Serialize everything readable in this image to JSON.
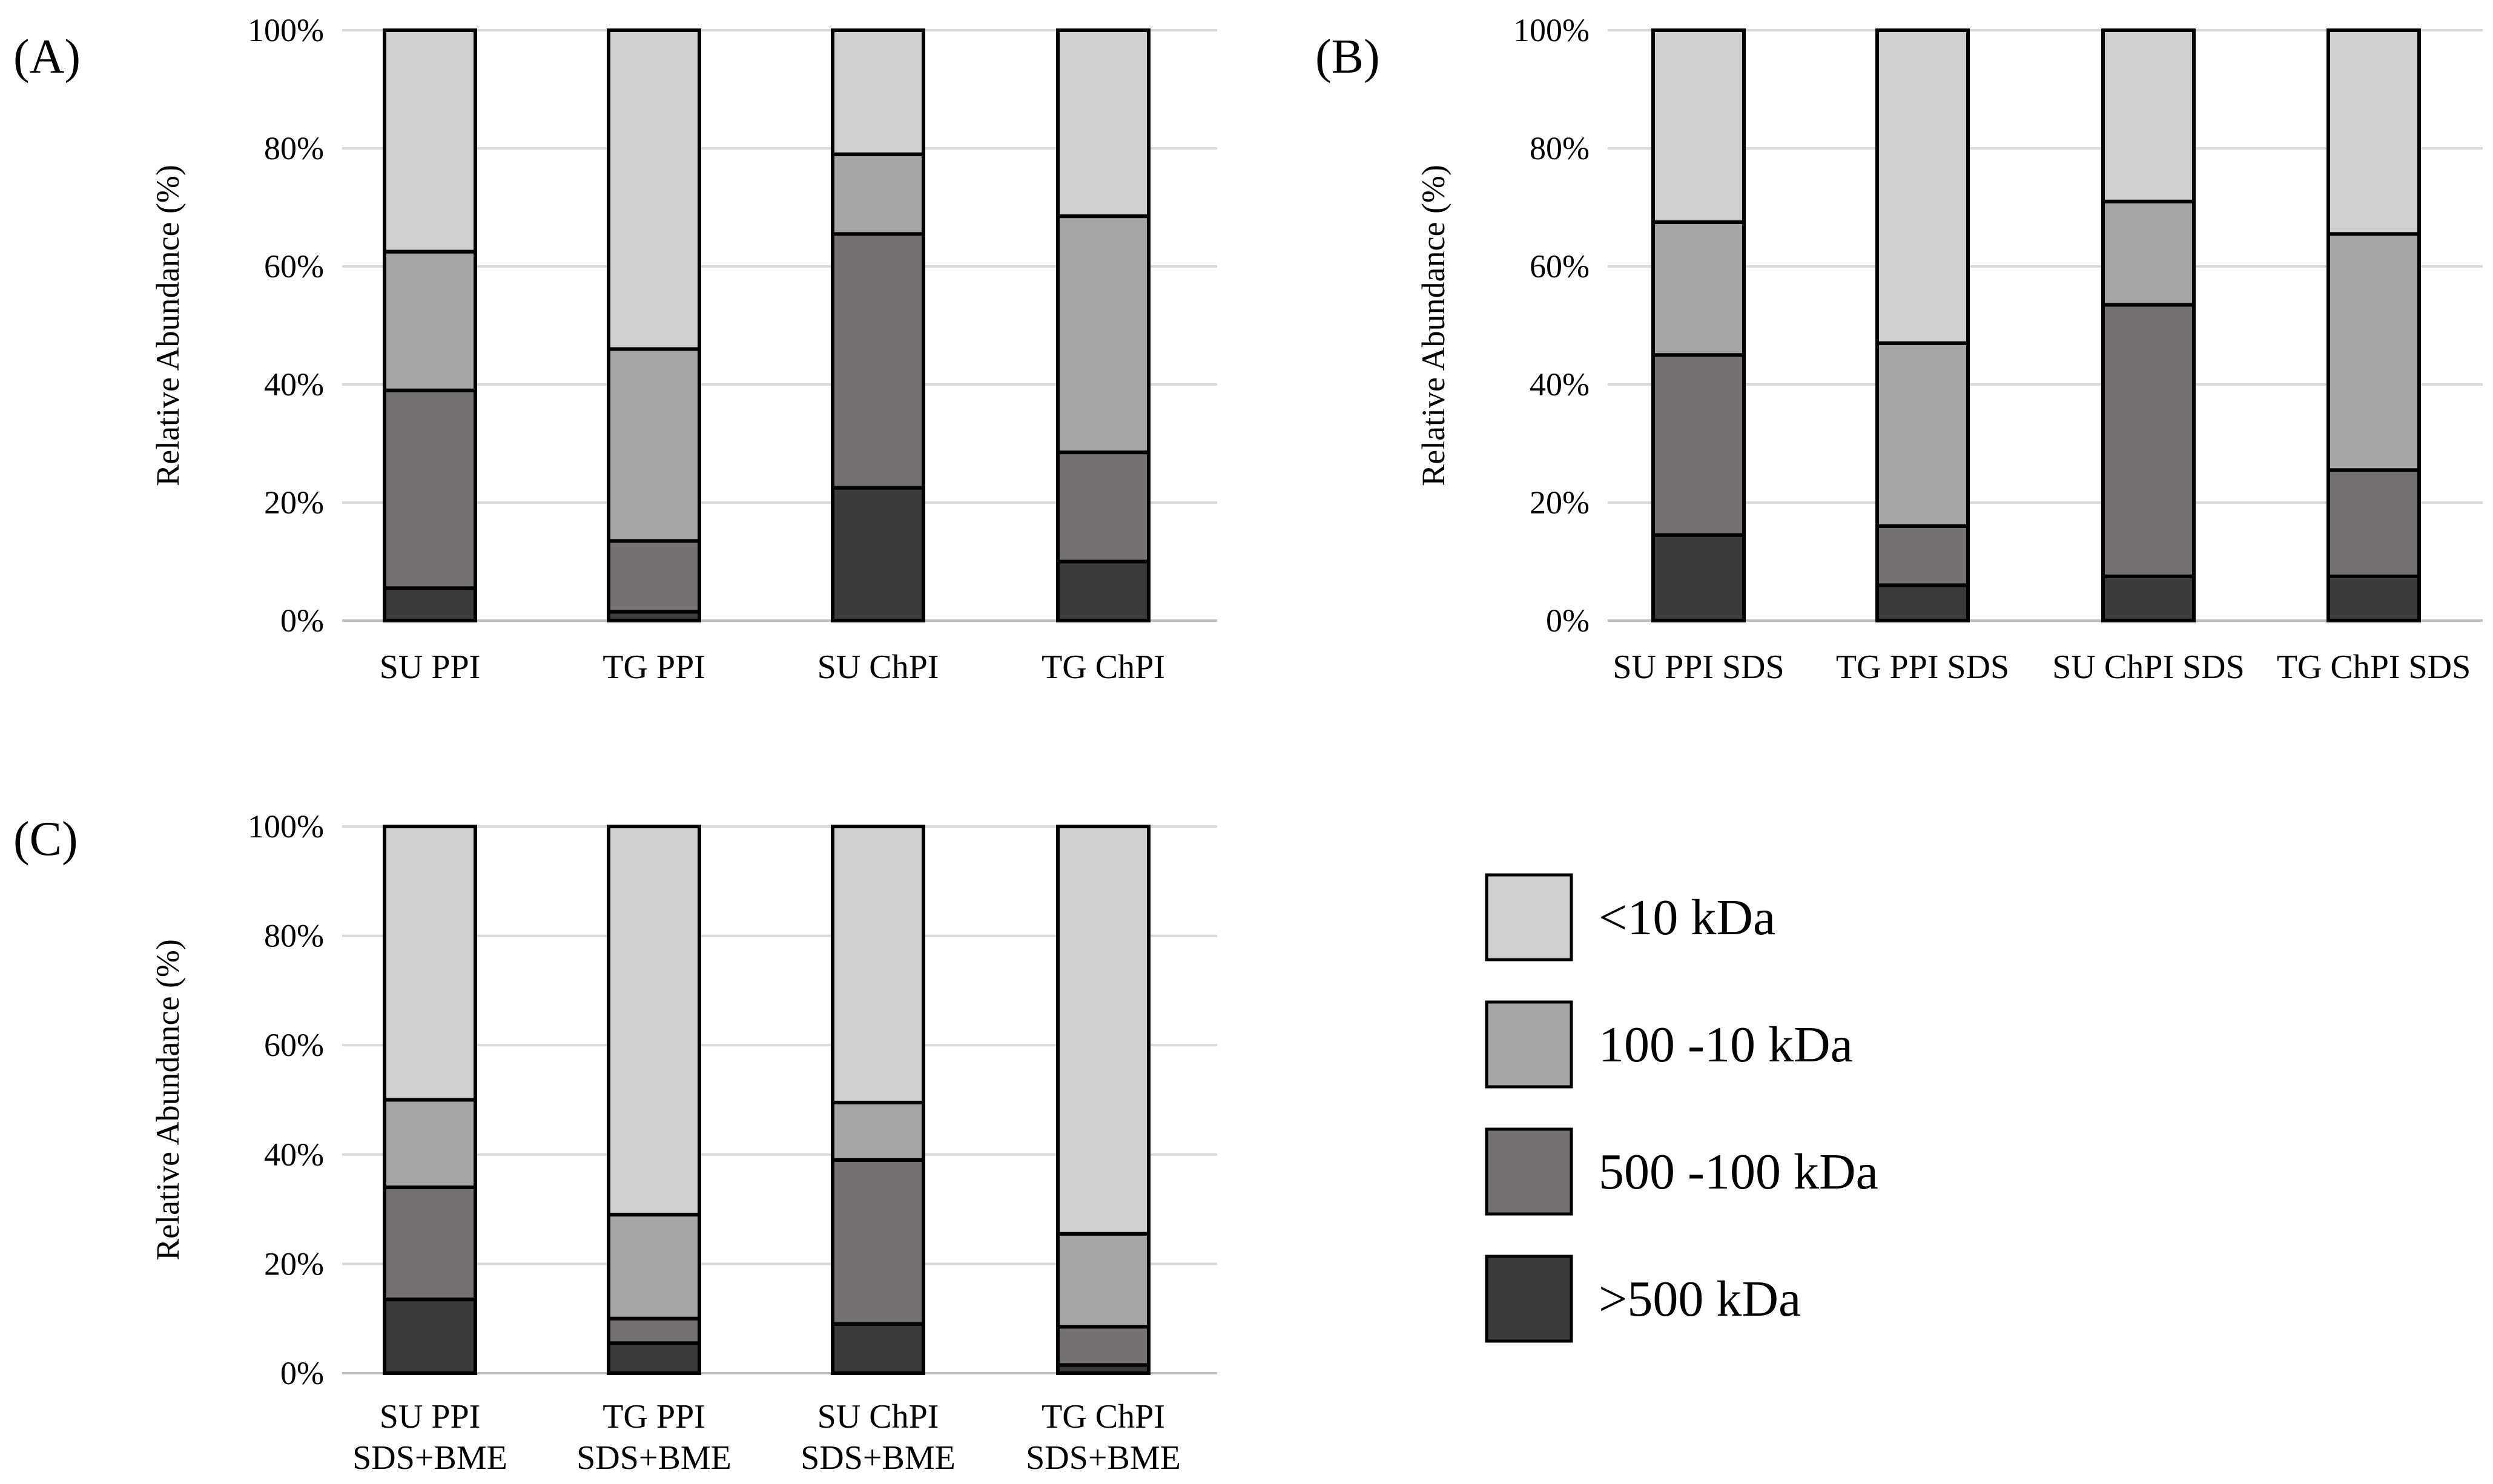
{
  "legend": {
    "items": [
      {
        "label": "<10 kDa",
        "color": "#d0cfd0"
      },
      {
        "label": "100 -10 kDa",
        "color": "#a5a5a5"
      },
      {
        "label": "500 -100 kDa",
        "color": "#767171"
      },
      {
        "label": ">500 kDa",
        "color": "#3b3b3b"
      }
    ]
  },
  "chart_data": [
    {
      "type": "bar",
      "stacked": true,
      "panel_label": "(A)",
      "ylabel": "Relative Abundance (%)",
      "ylim": [
        0,
        100
      ],
      "yticks": [
        "0%",
        "20%",
        "40%",
        "60%",
        "80%",
        "100%"
      ],
      "categories": [
        [
          "SU PPI"
        ],
        [
          "TG PPI"
        ],
        [
          "SU ChPI"
        ],
        [
          "TG ChPI"
        ]
      ],
      "series": [
        {
          "name": ">500 kDa",
          "values": [
            5.5,
            1.5,
            22.5,
            10
          ]
        },
        {
          "name": "500 -100 kDa",
          "values": [
            33.5,
            12,
            43,
            18.5
          ]
        },
        {
          "name": "100 -10 kDa",
          "values": [
            23.5,
            32.5,
            13.5,
            40
          ]
        },
        {
          "name": "<10 kDa",
          "values": [
            37.5,
            54,
            21,
            31.5
          ]
        }
      ]
    },
    {
      "type": "bar",
      "stacked": true,
      "panel_label": "(B)",
      "ylabel": "Relative Abundance (%)",
      "ylim": [
        0,
        100
      ],
      "yticks": [
        "0%",
        "20%",
        "40%",
        "60%",
        "80%",
        "100%"
      ],
      "categories": [
        [
          "SU PPI SDS"
        ],
        [
          "TG PPI SDS"
        ],
        [
          "SU ChPI SDS"
        ],
        [
          "TG ChPI SDS"
        ]
      ],
      "series": [
        {
          "name": ">500 kDa",
          "values": [
            14.5,
            6,
            7.5,
            7.5
          ]
        },
        {
          "name": "500 -100 kDa",
          "values": [
            30.5,
            10,
            46,
            18
          ]
        },
        {
          "name": "100 -10 kDa",
          "values": [
            22.5,
            31,
            17.5,
            40
          ]
        },
        {
          "name": "<10 kDa",
          "values": [
            32.5,
            53,
            29,
            34.5
          ]
        }
      ]
    },
    {
      "type": "bar",
      "stacked": true,
      "panel_label": "(C)",
      "ylabel": "Relative Abundance (%)",
      "ylim": [
        0,
        100
      ],
      "yticks": [
        "0%",
        "20%",
        "40%",
        "60%",
        "80%",
        "100%"
      ],
      "categories": [
        [
          "SU PPI",
          "SDS+BME"
        ],
        [
          "TG PPI",
          "SDS+BME"
        ],
        [
          "SU ChPI",
          "SDS+BME"
        ],
        [
          "TG ChPI",
          "SDS+BME"
        ]
      ],
      "series": [
        {
          "name": ">500 kDa",
          "values": [
            13.5,
            5.5,
            9,
            1.5
          ]
        },
        {
          "name": "500 -100 kDa",
          "values": [
            20.5,
            4.5,
            30,
            7
          ]
        },
        {
          "name": "100 -10 kDa",
          "values": [
            16,
            19,
            10.5,
            17
          ]
        },
        {
          "name": "<10 kDa",
          "values": [
            50,
            71,
            50.5,
            74.5
          ]
        }
      ]
    }
  ]
}
